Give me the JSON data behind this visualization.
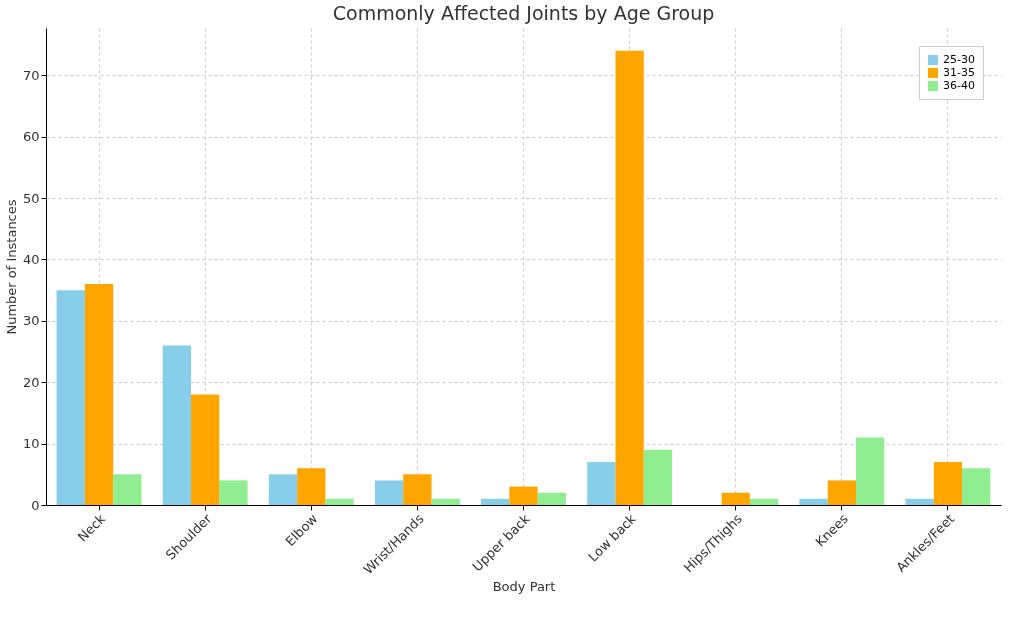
{
  "chart_data": {
    "type": "bar",
    "title": "Commonly Affected Joints by Age Group",
    "xlabel": "Body Part",
    "ylabel": "Number of Instances",
    "categories": [
      "Neck",
      "Shoulder",
      "Elbow",
      "Wrist/Hands",
      "Upper back",
      "Low back",
      "Hips/Thighs",
      "Knees",
      "Ankles/Feet"
    ],
    "series": [
      {
        "name": "25-30",
        "color": "#87ceeb",
        "values": [
          35,
          26,
          5,
          4,
          1,
          7,
          0,
          1,
          1
        ]
      },
      {
        "name": "31-35",
        "color": "#ffa500",
        "values": [
          36,
          18,
          6,
          5,
          3,
          74,
          2,
          4,
          7
        ]
      },
      {
        "name": "36-40",
        "color": "#90ee90",
        "values": [
          5,
          4,
          1,
          1,
          2,
          9,
          1,
          11,
          6
        ]
      }
    ],
    "ylim": [
      0,
      77.7
    ],
    "yticks": [
      0,
      10,
      20,
      30,
      40,
      50,
      60,
      70
    ],
    "grid": true,
    "legend": "top right"
  }
}
